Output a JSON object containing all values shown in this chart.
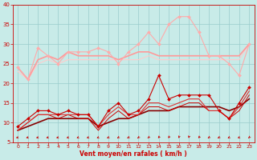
{
  "xlabel": "Vent moyen/en rafales ( km/h )",
  "xlim": [
    -0.5,
    23.5
  ],
  "ylim": [
    5,
    40
  ],
  "yticks": [
    5,
    10,
    15,
    20,
    25,
    30,
    35,
    40
  ],
  "xticks": [
    0,
    1,
    2,
    3,
    4,
    5,
    6,
    7,
    8,
    9,
    10,
    11,
    12,
    13,
    14,
    15,
    16,
    17,
    18,
    19,
    20,
    21,
    22,
    23
  ],
  "background_color": "#c8ebe8",
  "grid_color": "#99cccc",
  "series": [
    {
      "x": [
        0,
        1,
        2,
        3,
        4,
        5,
        6,
        7,
        8,
        9,
        10,
        11,
        12,
        13,
        14,
        15,
        16,
        17,
        18,
        19,
        20,
        21,
        22,
        23
      ],
      "y": [
        24,
        21,
        29,
        27,
        25,
        28,
        28,
        28,
        29,
        28,
        25,
        28,
        30,
        33,
        30,
        35,
        37,
        37,
        33,
        27,
        27,
        25,
        22,
        30
      ],
      "color": "#ffaaaa",
      "linewidth": 0.8,
      "marker": "D",
      "markersize": 2.0,
      "zorder": 4
    },
    {
      "x": [
        0,
        1,
        2,
        3,
        4,
        5,
        6,
        7,
        8,
        9,
        10,
        11,
        12,
        13,
        14,
        15,
        16,
        17,
        18,
        19,
        20,
        21,
        22,
        23
      ],
      "y": [
        24,
        21,
        26,
        27,
        26,
        28,
        27,
        27,
        27,
        27,
        26,
        27,
        28,
        28,
        27,
        27,
        27,
        27,
        27,
        27,
        27,
        27,
        27,
        30
      ],
      "color": "#ff9999",
      "linewidth": 1.2,
      "marker": null,
      "markersize": 0,
      "zorder": 3
    },
    {
      "x": [
        0,
        1,
        2,
        3,
        4,
        5,
        6,
        7,
        8,
        9,
        10,
        11,
        12,
        13,
        14,
        15,
        16,
        17,
        18,
        19,
        20,
        21,
        22,
        23
      ],
      "y": [
        23,
        21,
        25,
        26,
        25,
        26,
        26,
        26,
        26,
        26,
        26,
        26,
        26,
        27,
        26,
        26,
        26,
        26,
        26,
        26,
        26,
        26,
        26,
        30
      ],
      "color": "#ffcccc",
      "linewidth": 0.8,
      "marker": null,
      "markersize": 0,
      "zorder": 2
    },
    {
      "x": [
        0,
        1,
        2,
        3,
        4,
        5,
        6,
        7,
        8,
        9,
        10,
        11,
        12,
        13,
        14,
        15,
        16,
        17,
        18,
        19,
        20,
        21,
        22,
        23
      ],
      "y": [
        9,
        11,
        13,
        13,
        12,
        13,
        12,
        12,
        9,
        13,
        15,
        12,
        13,
        16,
        22,
        16,
        17,
        17,
        17,
        17,
        13,
        11,
        15,
        19
      ],
      "color": "#cc0000",
      "linewidth": 0.8,
      "marker": "D",
      "markersize": 2.0,
      "zorder": 6
    },
    {
      "x": [
        0,
        1,
        2,
        3,
        4,
        5,
        6,
        7,
        8,
        9,
        10,
        11,
        12,
        13,
        14,
        15,
        16,
        17,
        18,
        19,
        20,
        21,
        22,
        23
      ],
      "y": [
        8,
        10,
        12,
        12,
        12,
        12,
        12,
        12,
        9,
        12,
        14,
        12,
        12,
        15,
        15,
        14,
        15,
        16,
        16,
        13,
        13,
        11,
        14,
        18
      ],
      "color": "#dd3333",
      "linewidth": 0.8,
      "marker": null,
      "markersize": 0,
      "zorder": 5
    },
    {
      "x": [
        0,
        1,
        2,
        3,
        4,
        5,
        6,
        7,
        8,
        9,
        10,
        11,
        12,
        13,
        14,
        15,
        16,
        17,
        18,
        19,
        20,
        21,
        22,
        23
      ],
      "y": [
        8,
        10,
        12,
        12,
        11,
        12,
        11,
        11,
        8,
        11,
        13,
        11,
        12,
        14,
        14,
        13,
        14,
        15,
        15,
        13,
        13,
        11,
        13,
        17
      ],
      "color": "#cc0000",
      "linewidth": 0.7,
      "marker": null,
      "markersize": 0,
      "zorder": 4
    },
    {
      "x": [
        0,
        1,
        2,
        3,
        4,
        5,
        6,
        7,
        8,
        9,
        10,
        11,
        12,
        13,
        14,
        15,
        16,
        17,
        18,
        19,
        20,
        21,
        22,
        23
      ],
      "y": [
        8,
        9,
        10,
        11,
        11,
        11,
        11,
        11,
        9,
        10,
        11,
        11,
        12,
        13,
        13,
        13,
        14,
        14,
        14,
        14,
        14,
        13,
        14,
        16
      ],
      "color": "#880000",
      "linewidth": 1.2,
      "marker": null,
      "markersize": 0,
      "zorder": 3
    }
  ]
}
